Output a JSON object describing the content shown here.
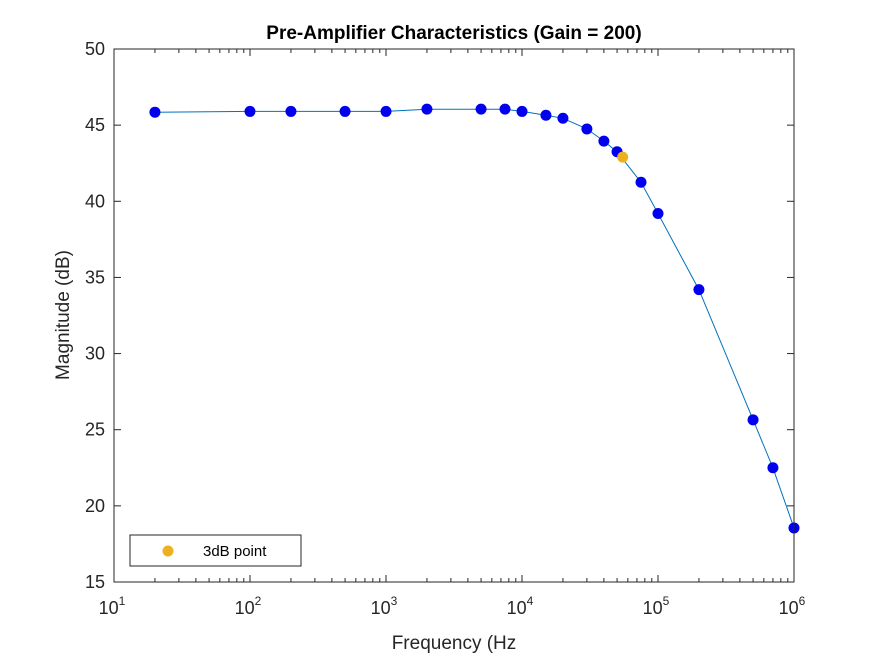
{
  "chart_data": {
    "type": "line",
    "title": "Pre-Amplifier Characteristics (Gain = 200)",
    "xlabel": "Frequency (Hz",
    "ylabel": "Magnitude (dB)",
    "xscale": "log",
    "xlim": [
      10,
      1000000
    ],
    "ylim": [
      15,
      50
    ],
    "x_ticks": [
      {
        "base": "10",
        "exp": "1",
        "value": 10
      },
      {
        "base": "10",
        "exp": "2",
        "value": 100
      },
      {
        "base": "10",
        "exp": "3",
        "value": 1000
      },
      {
        "base": "10",
        "exp": "4",
        "value": 10000
      },
      {
        "base": "10",
        "exp": "5",
        "value": 100000
      },
      {
        "base": "10",
        "exp": "6",
        "value": 1000000
      }
    ],
    "y_ticks": [
      15,
      20,
      25,
      30,
      35,
      40,
      45,
      50
    ],
    "grid": false,
    "legend_position": "bottom-left",
    "series": [
      {
        "color": "#0000ee",
        "line_color": "#0072bd",
        "x": [
          20,
          100,
          200,
          500,
          1000,
          2000,
          5000,
          7500,
          10000,
          15000,
          20000,
          30000,
          40000,
          50000,
          75000,
          100000,
          200000,
          500000,
          700000,
          1000000
        ],
        "y": [
          45.85,
          45.9,
          45.9,
          45.9,
          45.9,
          46.05,
          46.05,
          46.05,
          45.9,
          45.65,
          45.45,
          44.75,
          43.95,
          43.25,
          41.25,
          39.2,
          34.2,
          25.65,
          22.5,
          18.55
        ]
      },
      {
        "name": "3dB point",
        "color": "#edb120",
        "x": [
          55000
        ],
        "y": [
          42.9
        ]
      }
    ]
  }
}
